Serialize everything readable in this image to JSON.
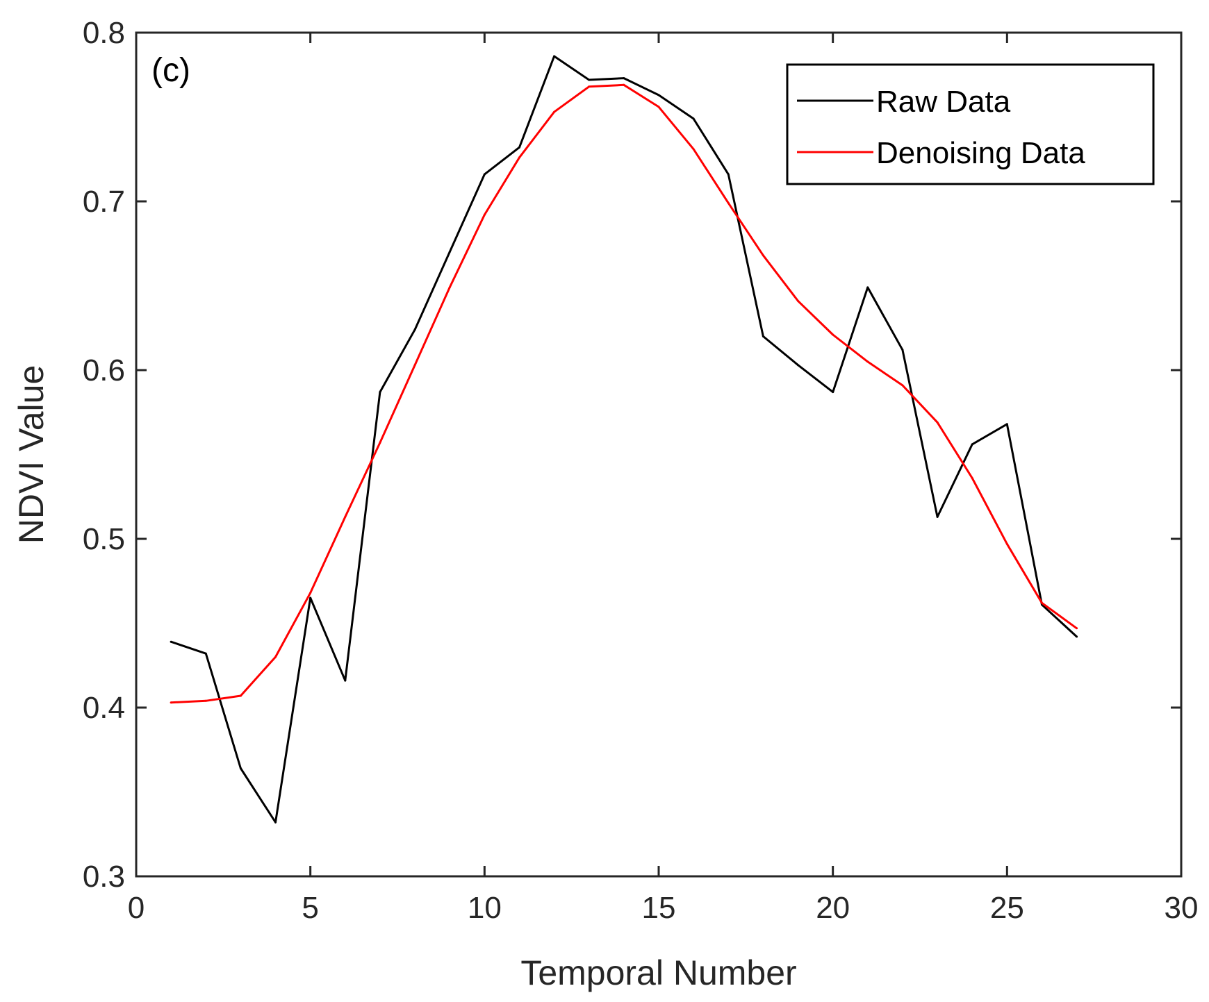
{
  "chart_data": {
    "type": "line",
    "title": "",
    "panel_label": "(c)",
    "xlabel": "Temporal Number",
    "ylabel": "NDVI Value",
    "xlim": [
      0,
      30
    ],
    "ylim": [
      0.3,
      0.8
    ],
    "xticks": [
      0,
      5,
      10,
      15,
      20,
      25,
      30
    ],
    "xtick_labels": [
      "0",
      "5",
      "10",
      "15",
      "20",
      "25",
      "30"
    ],
    "yticks": [
      0.3,
      0.4,
      0.5,
      0.6,
      0.7,
      0.8
    ],
    "ytick_labels": [
      "0.3",
      "0.4",
      "0.5",
      "0.6",
      "0.7",
      "0.8"
    ],
    "grid": false,
    "legend_position": "top-right",
    "x": [
      1,
      2,
      3,
      4,
      5,
      6,
      7,
      8,
      9,
      10,
      11,
      12,
      13,
      14,
      15,
      16,
      17,
      18,
      19,
      20,
      21,
      22,
      23,
      24,
      25,
      26,
      27
    ],
    "series": [
      {
        "name": "Raw Data",
        "color": "#000000",
        "values": [
          0.439,
          0.432,
          0.364,
          0.332,
          0.465,
          0.416,
          0.587,
          0.624,
          0.67,
          0.716,
          0.732,
          0.786,
          0.772,
          0.773,
          0.763,
          0.749,
          0.716,
          0.62,
          0.603,
          0.587,
          0.649,
          0.612,
          0.513,
          0.556,
          0.568,
          0.461,
          0.442
        ]
      },
      {
        "name": "Denoising Data",
        "color": "#ff0000",
        "values": [
          0.403,
          0.404,
          0.407,
          0.43,
          0.468,
          0.513,
          0.557,
          0.603,
          0.649,
          0.692,
          0.726,
          0.753,
          0.768,
          0.769,
          0.756,
          0.731,
          0.699,
          0.668,
          0.641,
          0.621,
          0.605,
          0.591,
          0.569,
          0.536,
          0.497,
          0.462,
          0.447
        ]
      }
    ]
  }
}
